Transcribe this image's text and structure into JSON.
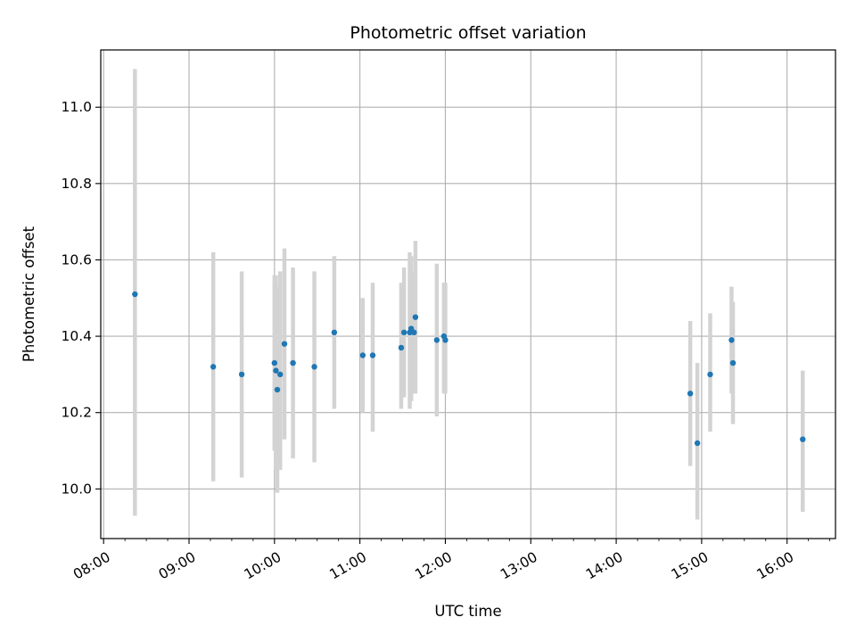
{
  "chart_data": {
    "type": "scatter",
    "title": "Photometric offset variation",
    "xlabel": "UTC time",
    "ylabel": "Photometric offset",
    "x_tick_labels": [
      "08:00",
      "09:00",
      "10:00",
      "11:00",
      "12:00",
      "13:00",
      "14:00",
      "15:00",
      "16:00"
    ],
    "y_tick_labels": [
      "10.0",
      "10.2",
      "10.4",
      "10.6",
      "10.8",
      "11.0"
    ],
    "xlim": [
      "07:58",
      "16:34"
    ],
    "ylim": [
      9.87,
      11.15
    ],
    "grid": true,
    "colors": {
      "point": "#1f77b4",
      "errorbar": "#d3d3d3",
      "grid": "#b0b0b0"
    },
    "points": [
      {
        "x": "08:22",
        "y": 10.51,
        "lo": 9.93,
        "hi": 11.1
      },
      {
        "x": "09:17",
        "y": 10.32,
        "lo": 10.02,
        "hi": 10.62
      },
      {
        "x": "09:37",
        "y": 10.3,
        "lo": 10.03,
        "hi": 10.57
      },
      {
        "x": "10:00",
        "y": 10.33,
        "lo": 10.1,
        "hi": 10.56
      },
      {
        "x": "10:01",
        "y": 10.31,
        "lo": 10.05,
        "hi": 10.56
      },
      {
        "x": "10:02",
        "y": 10.26,
        "lo": 9.99,
        "hi": 10.53
      },
      {
        "x": "10:04",
        "y": 10.3,
        "lo": 10.05,
        "hi": 10.57
      },
      {
        "x": "10:07",
        "y": 10.38,
        "lo": 10.13,
        "hi": 10.63
      },
      {
        "x": "10:13",
        "y": 10.33,
        "lo": 10.08,
        "hi": 10.58
      },
      {
        "x": "10:28",
        "y": 10.32,
        "lo": 10.07,
        "hi": 10.57
      },
      {
        "x": "10:42",
        "y": 10.41,
        "lo": 10.21,
        "hi": 10.61
      },
      {
        "x": "11:02",
        "y": 10.35,
        "lo": 10.2,
        "hi": 10.5
      },
      {
        "x": "11:09",
        "y": 10.35,
        "lo": 10.15,
        "hi": 10.54
      },
      {
        "x": "11:29",
        "y": 10.37,
        "lo": 10.21,
        "hi": 10.54
      },
      {
        "x": "11:31",
        "y": 10.41,
        "lo": 10.24,
        "hi": 10.58
      },
      {
        "x": "11:35",
        "y": 10.41,
        "lo": 10.21,
        "hi": 10.62
      },
      {
        "x": "11:36",
        "y": 10.42,
        "lo": 10.23,
        "hi": 10.61
      },
      {
        "x": "11:38",
        "y": 10.41,
        "lo": 10.25,
        "hi": 10.57
      },
      {
        "x": "11:39",
        "y": 10.45,
        "lo": 10.25,
        "hi": 10.65
      },
      {
        "x": "11:54",
        "y": 10.39,
        "lo": 10.19,
        "hi": 10.59
      },
      {
        "x": "11:59",
        "y": 10.4,
        "lo": 10.25,
        "hi": 10.54
      },
      {
        "x": "12:00",
        "y": 10.39,
        "lo": 10.25,
        "hi": 10.54
      },
      {
        "x": "14:52",
        "y": 10.25,
        "lo": 10.06,
        "hi": 10.44
      },
      {
        "x": "14:57",
        "y": 10.12,
        "lo": 9.92,
        "hi": 10.33
      },
      {
        "x": "15:06",
        "y": 10.3,
        "lo": 10.15,
        "hi": 10.46
      },
      {
        "x": "15:21",
        "y": 10.39,
        "lo": 10.25,
        "hi": 10.53
      },
      {
        "x": "15:22",
        "y": 10.33,
        "lo": 10.17,
        "hi": 10.49
      },
      {
        "x": "16:11",
        "y": 10.13,
        "lo": 9.94,
        "hi": 10.31
      }
    ]
  }
}
